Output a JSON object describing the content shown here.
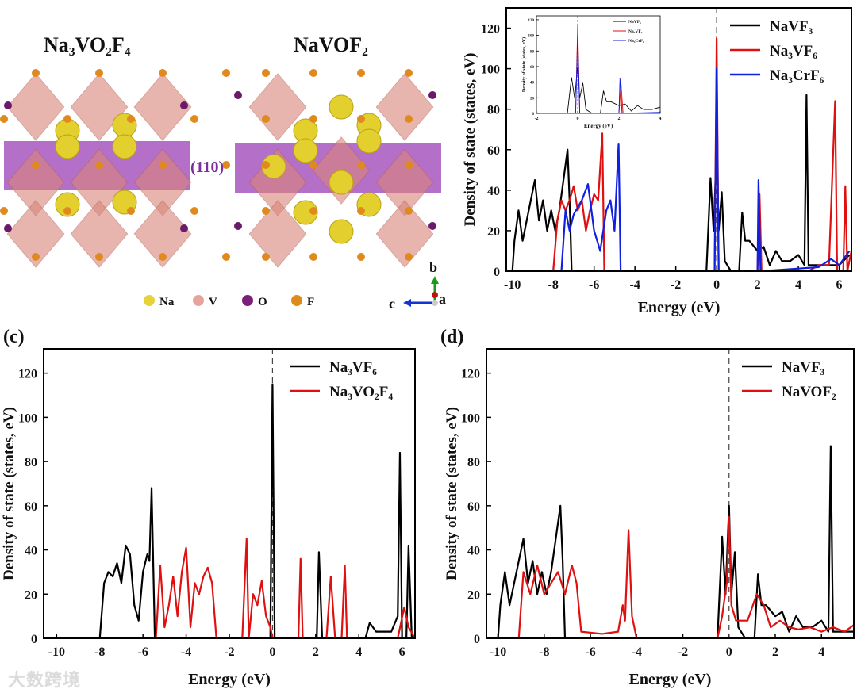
{
  "structure": {
    "title_left": "Na₃VO₂F₄",
    "title_right": "NaVOF₂",
    "plane_label": "(110)",
    "legend": [
      {
        "label": "Na",
        "color": "#e8d23a"
      },
      {
        "label": "V",
        "color": "#e8a49a"
      },
      {
        "label": "O",
        "color": "#7a1f7a"
      },
      {
        "label": "F",
        "color": "#e08a1e"
      }
    ],
    "axes": {
      "b": "b",
      "c": "c",
      "a": "a"
    }
  },
  "panel_labels": {
    "c": "(c)",
    "d": "(d)"
  },
  "watermark": "大数跨境",
  "chart_data": [
    {
      "id": "b",
      "type": "line",
      "xlabel": "Energy (eV)",
      "ylabel": "Density of state (states, eV)",
      "xlim": [
        -10.3,
        6.6
      ],
      "ylim": [
        0,
        130
      ],
      "xticks": [
        -10,
        -8,
        -6,
        -4,
        -2,
        0,
        2,
        4,
        6
      ],
      "yticks": [
        0,
        20,
        40,
        60,
        80,
        100,
        120
      ],
      "fermi_level": 0,
      "legend_position": "top-right",
      "series": [
        {
          "name": "NaVF₃",
          "color": "#000000",
          "points": [
            [
              -10,
              0
            ],
            [
              -9.9,
              15
            ],
            [
              -9.7,
              30
            ],
            [
              -9.5,
              15
            ],
            [
              -9.3,
              25
            ],
            [
              -9.1,
              35
            ],
            [
              -8.9,
              45
            ],
            [
              -8.7,
              25
            ],
            [
              -8.5,
              35
            ],
            [
              -8.3,
              20
            ],
            [
              -8.1,
              30
            ],
            [
              -7.9,
              20
            ],
            [
              -7.7,
              30
            ],
            [
              -7.5,
              45
            ],
            [
              -7.3,
              60
            ],
            [
              -7.2,
              35
            ],
            [
              -7.1,
              0
            ],
            [
              -0.5,
              0
            ],
            [
              -0.3,
              46
            ],
            [
              -0.15,
              20
            ],
            [
              0,
              60
            ],
            [
              0.1,
              20
            ],
            [
              0.25,
              39
            ],
            [
              0.4,
              5
            ],
            [
              0.7,
              0
            ],
            [
              1.1,
              0
            ],
            [
              1.25,
              29
            ],
            [
              1.4,
              15
            ],
            [
              1.6,
              15
            ],
            [
              2,
              10
            ],
            [
              2.3,
              12
            ],
            [
              2.6,
              3
            ],
            [
              2.9,
              10
            ],
            [
              3.2,
              5
            ],
            [
              3.6,
              5
            ],
            [
              4.0,
              8
            ],
            [
              4.3,
              3
            ],
            [
              4.4,
              87
            ],
            [
              4.5,
              3
            ],
            [
              5,
              3
            ],
            [
              5.5,
              3
            ],
            [
              6,
              3
            ],
            [
              6.5,
              8
            ]
          ]
        },
        {
          "name": "Na₃VF₆",
          "color": "#e01010",
          "points": [
            [
              -8,
              0
            ],
            [
              -7.8,
              25
            ],
            [
              -7.6,
              35
            ],
            [
              -7.4,
              30
            ],
            [
              -7.2,
              35
            ],
            [
              -7,
              42
            ],
            [
              -6.8,
              30
            ],
            [
              -6.6,
              35
            ],
            [
              -6.4,
              20
            ],
            [
              -6.2,
              30
            ],
            [
              -6,
              38
            ],
            [
              -5.8,
              35
            ],
            [
              -5.6,
              68
            ],
            [
              -5.5,
              0
            ],
            [
              -0.1,
              0
            ],
            [
              0,
              115
            ],
            [
              0.1,
              0
            ],
            [
              2,
              0
            ],
            [
              2.1,
              38
            ],
            [
              2.2,
              0
            ],
            [
              4.5,
              0
            ],
            [
              5,
              3
            ],
            [
              5.5,
              3
            ],
            [
              5.8,
              84
            ],
            [
              5.9,
              0
            ],
            [
              6.2,
              0
            ],
            [
              6.3,
              42
            ],
            [
              6.4,
              0
            ],
            [
              6.6,
              10
            ]
          ]
        },
        {
          "name": "Na₃CrF₆",
          "color": "#1020e0",
          "points": [
            [
              -7.6,
              0
            ],
            [
              -7.4,
              30
            ],
            [
              -7.2,
              20
            ],
            [
              -7,
              28
            ],
            [
              -6.6,
              35
            ],
            [
              -6.3,
              43
            ],
            [
              -6,
              20
            ],
            [
              -5.7,
              10
            ],
            [
              -5.4,
              30
            ],
            [
              -5.2,
              35
            ],
            [
              -5,
              20
            ],
            [
              -4.8,
              63
            ],
            [
              -4.7,
              0
            ],
            [
              -0.1,
              0
            ],
            [
              0,
              100
            ],
            [
              0.1,
              0
            ],
            [
              2,
              0
            ],
            [
              2.05,
              45
            ],
            [
              2.15,
              0
            ],
            [
              5,
              2
            ],
            [
              5.6,
              6
            ],
            [
              6,
              3
            ],
            [
              6.5,
              10
            ]
          ]
        }
      ],
      "inset": {
        "xlabel": "Energy (eV)",
        "ylabel": "Density of state (states, eV)",
        "xlim": [
          -2,
          4
        ],
        "ylim": [
          0,
          125
        ],
        "xticks": [
          -2,
          0,
          2,
          4
        ],
        "yticks": [
          0,
          20,
          40,
          60,
          80,
          100,
          120
        ]
      }
    },
    {
      "id": "c",
      "type": "line",
      "xlabel": "Energy (eV)",
      "ylabel": "Density of state (states, eV)",
      "xlim": [
        -10.6,
        6.6
      ],
      "ylim": [
        0,
        131
      ],
      "xticks": [
        -10,
        -8,
        -6,
        -4,
        -2,
        0,
        2,
        4,
        6
      ],
      "yticks": [
        0,
        20,
        40,
        60,
        80,
        100,
        120
      ],
      "fermi_level": 0,
      "legend_position": "top-right",
      "series": [
        {
          "name": "Na₃VF₆",
          "color": "#000000",
          "points": [
            [
              -8,
              0
            ],
            [
              -7.8,
              25
            ],
            [
              -7.6,
              30
            ],
            [
              -7.4,
              28
            ],
            [
              -7.2,
              34
            ],
            [
              -7,
              25
            ],
            [
              -6.8,
              42
            ],
            [
              -6.6,
              38
            ],
            [
              -6.4,
              15
            ],
            [
              -6.2,
              8
            ],
            [
              -6,
              30
            ],
            [
              -5.8,
              38
            ],
            [
              -5.7,
              35
            ],
            [
              -5.6,
              68
            ],
            [
              -5.45,
              0
            ],
            [
              -0.1,
              0
            ],
            [
              0,
              115
            ],
            [
              0.1,
              0
            ],
            [
              2.05,
              0
            ],
            [
              2.15,
              39
            ],
            [
              2.3,
              0
            ],
            [
              4.3,
              0
            ],
            [
              4.5,
              7
            ],
            [
              4.8,
              3
            ],
            [
              5.5,
              3
            ],
            [
              5.8,
              10
            ],
            [
              5.9,
              84
            ],
            [
              6.0,
              0
            ],
            [
              6.2,
              0
            ],
            [
              6.3,
              42
            ],
            [
              6.45,
              0
            ]
          ]
        },
        {
          "name": "Na₃VO₂F₄",
          "color": "#e01010",
          "points": [
            [
              -5.4,
              0
            ],
            [
              -5.2,
              33
            ],
            [
              -5.0,
              5
            ],
            [
              -4.8,
              15
            ],
            [
              -4.6,
              28
            ],
            [
              -4.4,
              10
            ],
            [
              -4.2,
              30
            ],
            [
              -4,
              41
            ],
            [
              -3.8,
              5
            ],
            [
              -3.6,
              25
            ],
            [
              -3.4,
              20
            ],
            [
              -3.2,
              28
            ],
            [
              -3,
              32
            ],
            [
              -2.8,
              25
            ],
            [
              -2.6,
              0
            ],
            [
              -1.4,
              0
            ],
            [
              -1.2,
              45
            ],
            [
              -1.1,
              0
            ],
            [
              -0.9,
              20
            ],
            [
              -0.7,
              15
            ],
            [
              -0.5,
              26
            ],
            [
              -0.3,
              10
            ],
            [
              -0.1,
              5
            ],
            [
              0,
              0
            ],
            [
              1.2,
              0
            ],
            [
              1.3,
              36
            ],
            [
              1.4,
              0
            ],
            [
              2.5,
              0
            ],
            [
              2.7,
              28
            ],
            [
              2.9,
              0
            ],
            [
              3.2,
              0
            ],
            [
              3.35,
              33
            ],
            [
              3.45,
              0
            ],
            [
              5.8,
              0
            ],
            [
              6.1,
              14
            ],
            [
              6.3,
              5
            ],
            [
              6.6,
              0
            ]
          ]
        }
      ]
    },
    {
      "id": "d",
      "type": "line",
      "xlabel": "Energy (eV)",
      "ylabel": "Density of state (states, eV)",
      "xlim": [
        -10.5,
        5.4
      ],
      "ylim": [
        0,
        131
      ],
      "xticks": [
        -10,
        -8,
        -6,
        -4,
        -2,
        0,
        2,
        4
      ],
      "yticks": [
        0,
        20,
        40,
        60,
        80,
        100,
        120
      ],
      "fermi_level": 0,
      "legend_position": "top-right",
      "series": [
        {
          "name": "NaVF₃",
          "color": "#000000",
          "points": [
            [
              -10,
              0
            ],
            [
              -9.9,
              15
            ],
            [
              -9.7,
              30
            ],
            [
              -9.5,
              15
            ],
            [
              -9.3,
              25
            ],
            [
              -9.1,
              35
            ],
            [
              -8.9,
              45
            ],
            [
              -8.7,
              25
            ],
            [
              -8.5,
              35
            ],
            [
              -8.3,
              20
            ],
            [
              -8.1,
              30
            ],
            [
              -7.9,
              20
            ],
            [
              -7.7,
              30
            ],
            [
              -7.5,
              45
            ],
            [
              -7.3,
              60
            ],
            [
              -7.2,
              35
            ],
            [
              -7.1,
              0
            ],
            [
              -0.5,
              0
            ],
            [
              -0.3,
              46
            ],
            [
              -0.15,
              20
            ],
            [
              0,
              60
            ],
            [
              0.1,
              20
            ],
            [
              0.25,
              39
            ],
            [
              0.4,
              5
            ],
            [
              0.7,
              0
            ],
            [
              1.1,
              0
            ],
            [
              1.25,
              29
            ],
            [
              1.4,
              15
            ],
            [
              1.6,
              15
            ],
            [
              2,
              10
            ],
            [
              2.3,
              12
            ],
            [
              2.6,
              3
            ],
            [
              2.9,
              10
            ],
            [
              3.2,
              5
            ],
            [
              3.6,
              5
            ],
            [
              4.0,
              8
            ],
            [
              4.3,
              3
            ],
            [
              4.4,
              87
            ],
            [
              4.5,
              3
            ],
            [
              5,
              3
            ],
            [
              5.4,
              3
            ]
          ]
        },
        {
          "name": "NaVOF₂",
          "color": "#e01010",
          "points": [
            [
              -9.1,
              0
            ],
            [
              -8.9,
              30
            ],
            [
              -8.6,
              20
            ],
            [
              -8.3,
              33
            ],
            [
              -8,
              20
            ],
            [
              -7.7,
              25
            ],
            [
              -7.4,
              30
            ],
            [
              -7.1,
              20
            ],
            [
              -6.8,
              33
            ],
            [
              -6.6,
              25
            ],
            [
              -6.4,
              3
            ],
            [
              -5.5,
              2
            ],
            [
              -4.8,
              3
            ],
            [
              -4.6,
              15
            ],
            [
              -4.5,
              8
            ],
            [
              -4.35,
              49
            ],
            [
              -4.2,
              10
            ],
            [
              -4,
              0
            ],
            [
              -0.5,
              0
            ],
            [
              -0.3,
              10
            ],
            [
              -0.1,
              25
            ],
            [
              0,
              55
            ],
            [
              0.1,
              15
            ],
            [
              0.3,
              8
            ],
            [
              0.8,
              8
            ],
            [
              1.2,
              20
            ],
            [
              1.5,
              15
            ],
            [
              1.8,
              5
            ],
            [
              2.2,
              8
            ],
            [
              2.6,
              5
            ],
            [
              3,
              4
            ],
            [
              3.5,
              5
            ],
            [
              4,
              3
            ],
            [
              4.5,
              5
            ],
            [
              5,
              3
            ],
            [
              5.4,
              6
            ]
          ]
        }
      ]
    }
  ]
}
